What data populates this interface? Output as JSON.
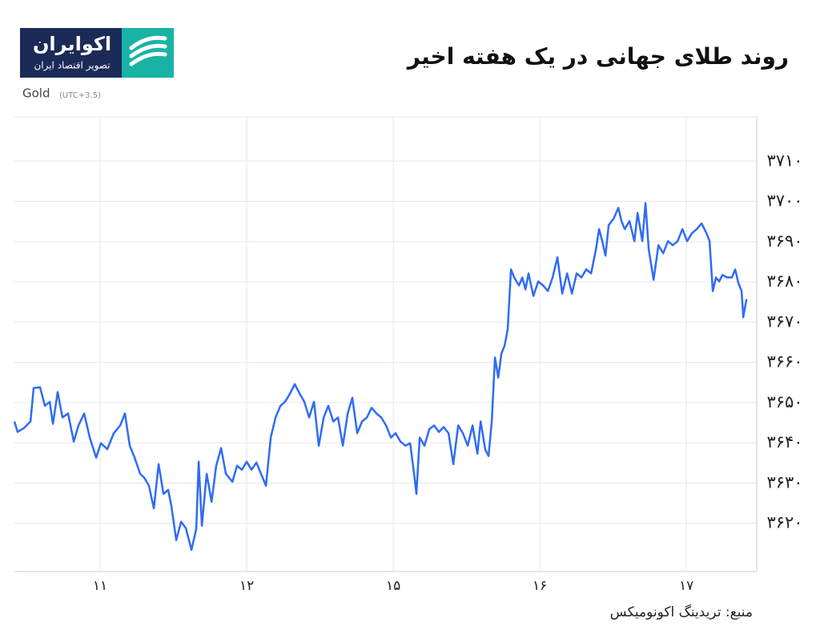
{
  "chart_data": {
    "type": "line",
    "title": "روند طلای جهانی در یک هفته اخیر",
    "brand": "اکوایران",
    "brand_tagline": "تصویر اقتصاد ایران",
    "timezone": "(UTC+3.5)",
    "source": "منبع: تریدینگ اکونومیکس",
    "grid": true,
    "xlim": [
      0.415,
      5.48
    ],
    "xticks": [
      {
        "value": 1,
        "label": "۱۱"
      },
      {
        "value": 2,
        "label": "۱۲"
      },
      {
        "value": 3,
        "label": "۱۵"
      },
      {
        "value": 4,
        "label": "۱۶"
      },
      {
        "value": 5,
        "label": "۱۷"
      }
    ],
    "ylim": [
      3608,
      3721
    ],
    "yticks": [
      {
        "value": 3620,
        "label": "۳۶۲۰"
      },
      {
        "value": 3630,
        "label": "۳۶۳۰"
      },
      {
        "value": 3640,
        "label": "۳۶۴۰"
      },
      {
        "value": 3650,
        "label": "۳۶۵۰"
      },
      {
        "value": 3660,
        "label": "۳۶۶۰"
      },
      {
        "value": 3670,
        "label": "۳۶۷۰"
      },
      {
        "value": 3680,
        "label": "۳۶۸۰"
      },
      {
        "value": 3690,
        "label": "۳۶۹۰"
      },
      {
        "value": 3700,
        "label": "۳۷۰۰"
      },
      {
        "value": 3710,
        "label": "۳۷۱۰"
      }
    ],
    "x": [
      0.415,
      0.437,
      0.481,
      0.525,
      0.546,
      0.59,
      0.623,
      0.656,
      0.678,
      0.71,
      0.743,
      0.781,
      0.82,
      0.852,
      0.891,
      0.929,
      0.973,
      1.005,
      1.049,
      1.093,
      1.137,
      1.169,
      1.202,
      1.235,
      1.273,
      1.301,
      1.333,
      1.366,
      1.399,
      1.432,
      1.464,
      1.486,
      1.519,
      1.552,
      1.585,
      1.623,
      1.656,
      1.672,
      1.694,
      1.727,
      1.76,
      1.792,
      1.825,
      1.858,
      1.902,
      1.934,
      1.967,
      2.0,
      2.033,
      2.066,
      2.098,
      2.131,
      2.164,
      2.197,
      2.23,
      2.262,
      2.295,
      2.328,
      2.361,
      2.393,
      2.426,
      2.459,
      2.492,
      2.525,
      2.557,
      2.59,
      2.623,
      2.656,
      2.689,
      2.721,
      2.754,
      2.787,
      2.82,
      2.852,
      2.885,
      2.918,
      2.951,
      2.984,
      3.016,
      3.049,
      3.082,
      3.115,
      3.142,
      3.158,
      3.18,
      3.213,
      3.246,
      3.279,
      3.311,
      3.344,
      3.377,
      3.41,
      3.443,
      3.475,
      3.508,
      3.541,
      3.574,
      3.596,
      3.628,
      3.65,
      3.672,
      3.694,
      3.716,
      3.738,
      3.76,
      3.781,
      3.803,
      3.825,
      3.858,
      3.88,
      3.902,
      3.923,
      3.956,
      3.989,
      4.022,
      4.055,
      4.087,
      4.12,
      4.153,
      4.186,
      4.219,
      4.251,
      4.284,
      4.317,
      4.35,
      4.383,
      4.404,
      4.426,
      4.448,
      4.47,
      4.503,
      4.536,
      4.557,
      4.579,
      4.612,
      4.645,
      4.667,
      4.699,
      4.721,
      4.743,
      4.776,
      4.809,
      4.842,
      4.874,
      4.907,
      4.94,
      4.973,
      5.005,
      5.038,
      5.071,
      5.104,
      5.137,
      5.158,
      5.18,
      5.202,
      5.224,
      5.246,
      5.279,
      5.311,
      5.333,
      5.355,
      5.377,
      5.388,
      5.41
    ],
    "series": [
      {
        "name": "Gold",
        "color": "#2f6bf5",
        "values": [
          3645.3,
          3642.7,
          3643.7,
          3645.3,
          3653.6,
          3653.8,
          3649.2,
          3650.2,
          3644.7,
          3652.6,
          3646.3,
          3647.3,
          3640.3,
          3644.3,
          3647.3,
          3641.3,
          3636.3,
          3639.9,
          3638.4,
          3642.4,
          3644.3,
          3647.3,
          3639.3,
          3636.3,
          3632.3,
          3631.3,
          3629.3,
          3623.7,
          3634.7,
          3627.3,
          3628.3,
          3624.3,
          3615.8,
          3620.4,
          3618.8,
          3613.4,
          3618.6,
          3635.3,
          3619.4,
          3632.3,
          3625.3,
          3634.3,
          3638.7,
          3632.3,
          3630.3,
          3634.3,
          3633.3,
          3635.3,
          3633.3,
          3635.1,
          3632.3,
          3629.3,
          3641.3,
          3646.3,
          3649.2,
          3650.2,
          3652.2,
          3654.6,
          3652.2,
          3650.2,
          3646.3,
          3650.2,
          3639.3,
          3646.3,
          3649.2,
          3645.3,
          3646.3,
          3639.3,
          3647.3,
          3651.2,
          3642.4,
          3645.3,
          3646.3,
          3648.7,
          3647.3,
          3646.3,
          3644.3,
          3641.3,
          3642.4,
          3640.3,
          3639.3,
          3639.9,
          3632.3,
          3627.3,
          3641.3,
          3639.3,
          3643.4,
          3644.3,
          3642.7,
          3643.9,
          3642.4,
          3634.7,
          3644.3,
          3642.4,
          3639.3,
          3644.3,
          3637.3,
          3645.3,
          3638.3,
          3636.7,
          3645.3,
          3661.2,
          3656.2,
          3662.2,
          3664.2,
          3668.2,
          3683.1,
          3681.1,
          3679.1,
          3681.1,
          3678.1,
          3682.1,
          3676.5,
          3680.1,
          3679.1,
          3677.7,
          3681.1,
          3686.1,
          3677.1,
          3682.1,
          3677.1,
          3682.1,
          3681.1,
          3683.1,
          3682.1,
          3688.1,
          3693.1,
          3690.1,
          3686.5,
          3694.1,
          3695.7,
          3698.4,
          3695.1,
          3693.1,
          3695.1,
          3690.1,
          3697.1,
          3690.1,
          3699.6,
          3688.1,
          3680.5,
          3689.1,
          3687.1,
          3690.1,
          3689.1,
          3690.1,
          3693.1,
          3690.1,
          3692.1,
          3693.1,
          3694.5,
          3692.1,
          3690.1,
          3677.7,
          3681.1,
          3680.1,
          3681.7,
          3681.1,
          3681.1,
          3683.1,
          3679.7,
          3677.7,
          3671.2,
          3675.7
        ]
      }
    ]
  }
}
